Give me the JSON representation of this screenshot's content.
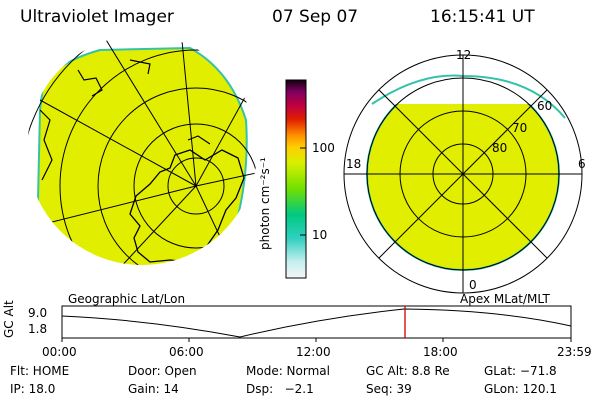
{
  "header": {
    "instrument": "Ultraviolet Imager",
    "date": "07 Sep 07",
    "time": "16:15:41 UT"
  },
  "colorbar": {
    "unit_label": "photon cm⁻²s⁻¹",
    "tick_labels": [
      "100",
      "10"
    ],
    "scale": "log"
  },
  "left_panel": {
    "label": "Geographic Lat/Lon",
    "fill_color": "#e2ee00",
    "coastline_color": "#000000"
  },
  "right_panel": {
    "label": "Apex  MLat/MLT",
    "mlt_labels": [
      "12",
      "18",
      "6",
      "0"
    ],
    "mlat_labels": [
      "60",
      "70",
      "80"
    ],
    "fill_color": "#e2ee00"
  },
  "altitude_plot": {
    "ylabel": "GC Alt",
    "yticks": [
      "9.0",
      "1.8"
    ],
    "xticks": [
      "00:00",
      "06:00",
      "12:00",
      "18:00",
      "23:59"
    ],
    "marker_color": "#d00000"
  },
  "footer": {
    "flt": "Flt: HOME",
    "ip": "IP: 18.0",
    "door": "Door: Open",
    "gain": "Gain: 14",
    "mode": "Mode: Normal",
    "dsp": "Dsp:   −2.1",
    "gcalt": "GC Alt: 8.8 Re",
    "seq": "Seq: 39",
    "glat": "GLat: −71.8",
    "glon": "GLon: 120.1"
  }
}
